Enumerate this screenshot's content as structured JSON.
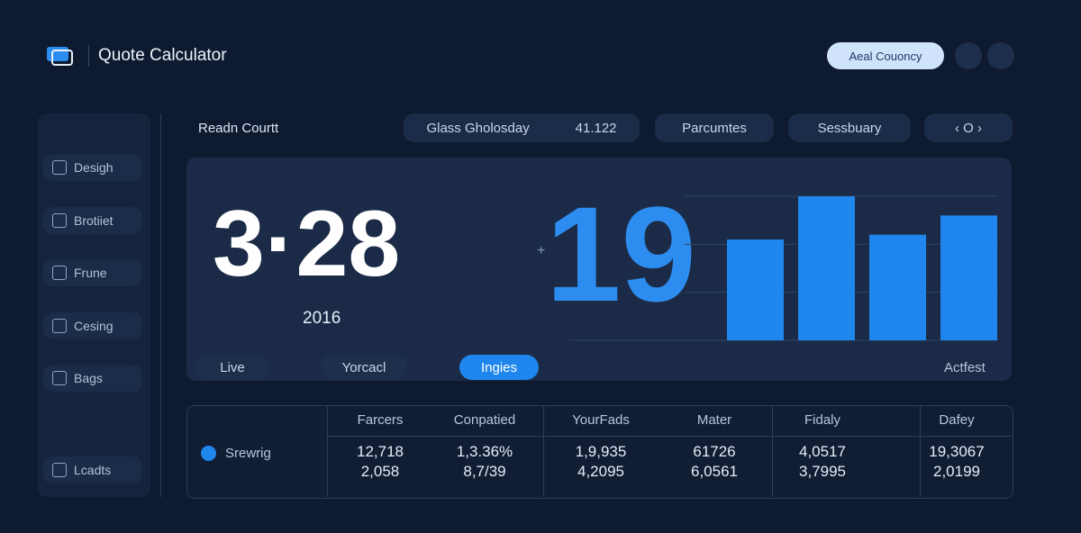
{
  "header": {
    "title": "Quote Calculator",
    "button": "Aeal Couoncy"
  },
  "sidebar": {
    "items": [
      "Desigh",
      "Brotiiet",
      "Frune",
      "Cesing",
      "Bags"
    ],
    "footer": "Lcadts"
  },
  "toolbar": {
    "label": "Readn Courtt",
    "search": "Glass Gholosday",
    "search_value": "41.122",
    "tabs": [
      "Parcumtes",
      "Sessbuary"
    ],
    "pager": "‹ O ›"
  },
  "hero": {
    "big_left": "3·28",
    "sub": "2016",
    "plus": "+",
    "big_right": "19",
    "chips": [
      "Live",
      "Yorcacl",
      "Ingies"
    ],
    "right_label": "Actfest",
    "chart": {
      "type": "bar",
      "values": [
        2.1,
        3.0,
        2.2,
        2.6
      ],
      "ylim": [
        0,
        3
      ],
      "yticks": [
        0,
        1,
        2,
        3
      ],
      "color": "#1e86ec"
    }
  },
  "table": {
    "columns": [
      "Farcers",
      "Conpatied",
      "YourFads",
      "Mater",
      "Fidaly",
      "Dafey"
    ],
    "row_label": "Srewrig",
    "rows": [
      [
        "12,718",
        "1,3.36%",
        "1,9,935",
        "61726",
        "4,0517",
        "19,3067"
      ],
      [
        "2,058",
        "8,7/39",
        "4,2095",
        "6,0561",
        "3,7995",
        "2,0199"
      ]
    ]
  }
}
